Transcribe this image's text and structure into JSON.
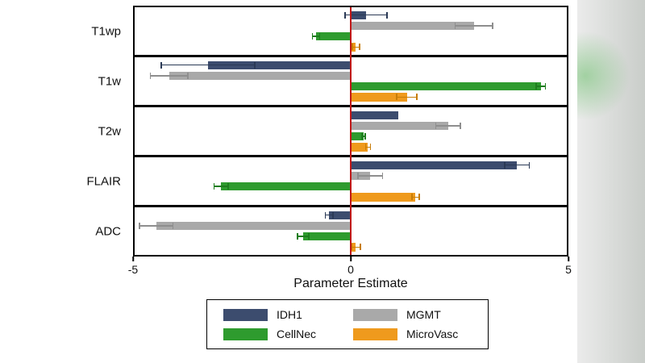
{
  "chart_data": {
    "type": "bar",
    "orientation": "horizontal",
    "title": "",
    "xlabel": "Parameter Estimate",
    "ylabel": "",
    "xlim": [
      -5,
      5
    ],
    "x_ticks": [
      -5,
      0,
      5
    ],
    "grid": false,
    "legend_position": "bottom",
    "zero_line_color": "#c01818",
    "categories": [
      "T1wp",
      "T1w",
      "T2w",
      "FLAIR",
      "ADC"
    ],
    "series": [
      {
        "name": "IDH1",
        "color": "#3c4c6e",
        "error_color": "#2b3a56",
        "values": [
          0.35,
          -3.3,
          1.1,
          3.85,
          -0.5
        ],
        "errors": [
          0.5,
          1.1,
          0,
          0.3,
          0.1
        ]
      },
      {
        "name": "MGMT",
        "color": "#a9a9a9",
        "error_color": "#8e8e8e",
        "values": [
          2.85,
          -4.2,
          2.25,
          0.45,
          -4.5
        ],
        "errors": [
          0.45,
          0.45,
          0.3,
          0.3,
          0.4
        ]
      },
      {
        "name": "CellNec",
        "color": "#2e9b2e",
        "error_color": "#1e7d1e",
        "values": [
          -0.8,
          4.4,
          0.3,
          -3.0,
          -1.1
        ],
        "errors": [
          0.1,
          0.12,
          0.05,
          0.18,
          0.15
        ]
      },
      {
        "name": "MicroVasc",
        "color": "#ef9a1d",
        "error_color": "#c77d08",
        "values": [
          0.12,
          1.3,
          0.4,
          1.5,
          0.12
        ],
        "errors": [
          0.1,
          0.25,
          0.07,
          0.1,
          0.12
        ]
      }
    ]
  }
}
